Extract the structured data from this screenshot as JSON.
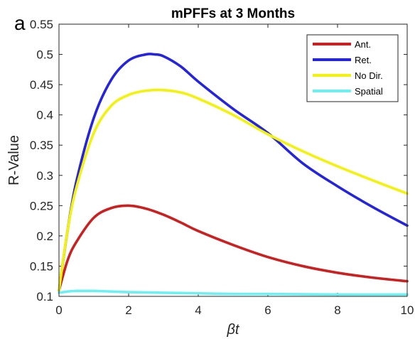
{
  "panel_label": "a",
  "chart_data": {
    "type": "line",
    "title": "mPFFs at 3 Months",
    "xlabel": "βt",
    "ylabel": "R-Value",
    "xlim": [
      0,
      10
    ],
    "ylim": [
      0.1,
      0.55
    ],
    "xticks": [
      0,
      2,
      4,
      6,
      8,
      10
    ],
    "yticks": [
      0.1,
      0.15,
      0.2,
      0.25,
      0.3,
      0.35,
      0.4,
      0.45,
      0.5,
      0.55
    ],
    "xtick_labels": [
      "0",
      "2",
      "4",
      "6",
      "8",
      "10"
    ],
    "ytick_labels": [
      "0.1",
      "0.15",
      "0.2",
      "0.25",
      "0.3",
      "0.35",
      "0.4",
      "0.45",
      "0.5",
      "0.55"
    ],
    "grid": false,
    "legend_position": "top-right",
    "series": [
      {
        "name": "Ant.",
        "color": "#cc1f1f",
        "x": [
          0,
          0.25,
          0.5,
          1,
          1.5,
          2,
          2.5,
          3,
          3.5,
          4,
          5,
          6,
          7,
          8,
          9,
          10
        ],
        "y": [
          0.11,
          0.16,
          0.19,
          0.23,
          0.246,
          0.25,
          0.245,
          0.235,
          0.222,
          0.208,
          0.185,
          0.165,
          0.15,
          0.139,
          0.131,
          0.125
        ]
      },
      {
        "name": "Ret.",
        "color": "#2424e0",
        "x": [
          0,
          0.25,
          0.5,
          1,
          1.5,
          2,
          2.5,
          2.75,
          3,
          3.5,
          4,
          5,
          6,
          7,
          8,
          9,
          10
        ],
        "y": [
          0.11,
          0.21,
          0.29,
          0.395,
          0.458,
          0.49,
          0.5,
          0.5,
          0.497,
          0.48,
          0.455,
          0.41,
          0.37,
          0.32,
          0.282,
          0.248,
          0.217
        ]
      },
      {
        "name": "No Dir.",
        "color": "#f2f20a",
        "x": [
          0,
          0.25,
          0.5,
          1,
          1.5,
          2,
          2.5,
          3,
          3.5,
          4,
          5,
          6,
          7,
          8,
          9,
          10
        ],
        "y": [
          0.11,
          0.21,
          0.28,
          0.37,
          0.415,
          0.433,
          0.44,
          0.441,
          0.437,
          0.427,
          0.4,
          0.368,
          0.34,
          0.315,
          0.292,
          0.27
        ]
      },
      {
        "name": "Spatial",
        "color": "#6df0f2",
        "x": [
          0,
          0.25,
          0.5,
          0.75,
          1,
          1.5,
          2,
          3,
          4,
          5,
          6,
          8,
          10
        ],
        "y": [
          0.106,
          0.108,
          0.109,
          0.109,
          0.109,
          0.108,
          0.107,
          0.106,
          0.105,
          0.104,
          0.104,
          0.103,
          0.103
        ]
      }
    ]
  }
}
